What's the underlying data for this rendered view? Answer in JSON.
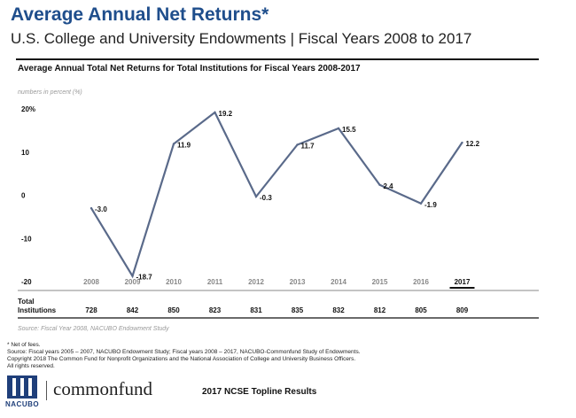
{
  "header": {
    "title": "Average Annual Net Returns*",
    "subtitle": "U.S. College and University Endowments | Fiscal Years 2008 to 2017"
  },
  "panel": {
    "chart_title": "Average Annual Total Net Returns for Total Institutions for Fiscal Years 2008-2017",
    "units_note": "numbers in percent (%)",
    "table_label_line1": "Total",
    "table_label_line2": "Institutions",
    "source_note": "Source: Fiscal Year 2008, NACUBO Endowment Study"
  },
  "chart_data": {
    "type": "line",
    "title": "Average Annual Total Net Returns for Total Institutions for Fiscal Years 2008-2017",
    "ylabel": "numbers in percent (%)",
    "xlabel": "",
    "categories": [
      "2008",
      "2009",
      "2010",
      "2011",
      "2012",
      "2013",
      "2014",
      "2015",
      "2016",
      "2017"
    ],
    "series": [
      {
        "values": [
          -3.0,
          -18.7,
          11.9,
          19.2,
          -0.3,
          11.7,
          15.5,
          2.4,
          -1.9,
          12.2
        ]
      }
    ],
    "data_labels": [
      "-3.0",
      "-18.7",
      "11.9",
      "19.2",
      "-0.3",
      "11.7",
      "15.5",
      "2.4",
      "-1.9",
      "12.2"
    ],
    "ylim": [
      -20,
      20
    ],
    "yticks": [
      20,
      10,
      0,
      -10,
      -20
    ],
    "ytick_labels": [
      "20%",
      "10",
      "0",
      "-10",
      "-20"
    ],
    "highlight_category": "2017",
    "institution_counts": [
      "728",
      "842",
      "850",
      "823",
      "831",
      "835",
      "832",
      "812",
      "805",
      "809"
    ],
    "line_color": "#5a6a8a",
    "grid": false
  },
  "footnotes": [
    "* Net of fees.",
    "Source: Fiscal years 2005 – 2007, NACUBO Endowment Study; Fiscal years 2008 – 2017, NACUBO-Commonfund Study of Endowments.",
    "Copyright 2018 The Common Fund for Nonprofit Organizations and the National Association of College and University Business Officers.",
    "All rights reserved."
  ],
  "branding": {
    "logo_text": "NACUBO",
    "partner_name": "commonfund",
    "report_name": "2017 NCSE Topline Results"
  }
}
